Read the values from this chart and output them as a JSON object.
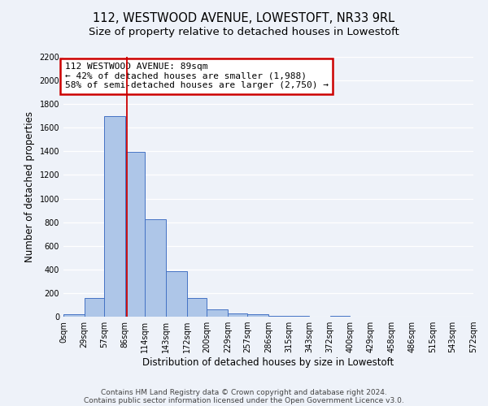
{
  "title": "112, WESTWOOD AVENUE, LOWESTOFT, NR33 9RL",
  "subtitle": "Size of property relative to detached houses in Lowestoft",
  "xlabel": "Distribution of detached houses by size in Lowestoft",
  "ylabel": "Number of detached properties",
  "bar_edges": [
    0,
    29,
    57,
    86,
    114,
    143,
    172,
    200,
    229,
    257,
    286,
    315,
    343,
    372,
    400,
    429,
    458,
    486,
    515,
    543,
    572
  ],
  "bar_heights": [
    20,
    155,
    1700,
    1395,
    825,
    385,
    160,
    65,
    30,
    20,
    5,
    5,
    0,
    5,
    0,
    0,
    0,
    0,
    0,
    0
  ],
  "bar_color": "#aec6e8",
  "bar_edge_color": "#4472c4",
  "property_size": 89,
  "property_line_color": "#cc0000",
  "annotation_text": "112 WESTWOOD AVENUE: 89sqm\n← 42% of detached houses are smaller (1,988)\n58% of semi-detached houses are larger (2,750) →",
  "annotation_box_edge_color": "#cc0000",
  "ylim": [
    0,
    2200
  ],
  "yticks": [
    0,
    200,
    400,
    600,
    800,
    1000,
    1200,
    1400,
    1600,
    1800,
    2000,
    2200
  ],
  "xtick_labels": [
    "0sqm",
    "29sqm",
    "57sqm",
    "86sqm",
    "114sqm",
    "143sqm",
    "172sqm",
    "200sqm",
    "229sqm",
    "257sqm",
    "286sqm",
    "315sqm",
    "343sqm",
    "372sqm",
    "400sqm",
    "429sqm",
    "458sqm",
    "486sqm",
    "515sqm",
    "543sqm",
    "572sqm"
  ],
  "footer_line1": "Contains HM Land Registry data © Crown copyright and database right 2024.",
  "footer_line2": "Contains public sector information licensed under the Open Government Licence v3.0.",
  "background_color": "#eef2f9",
  "grid_color": "#ffffff",
  "title_fontsize": 10.5,
  "subtitle_fontsize": 9.5,
  "ylabel_fontsize": 8.5,
  "xlabel_fontsize": 8.5,
  "tick_fontsize": 7,
  "annotation_fontsize": 8,
  "footer_fontsize": 6.5
}
